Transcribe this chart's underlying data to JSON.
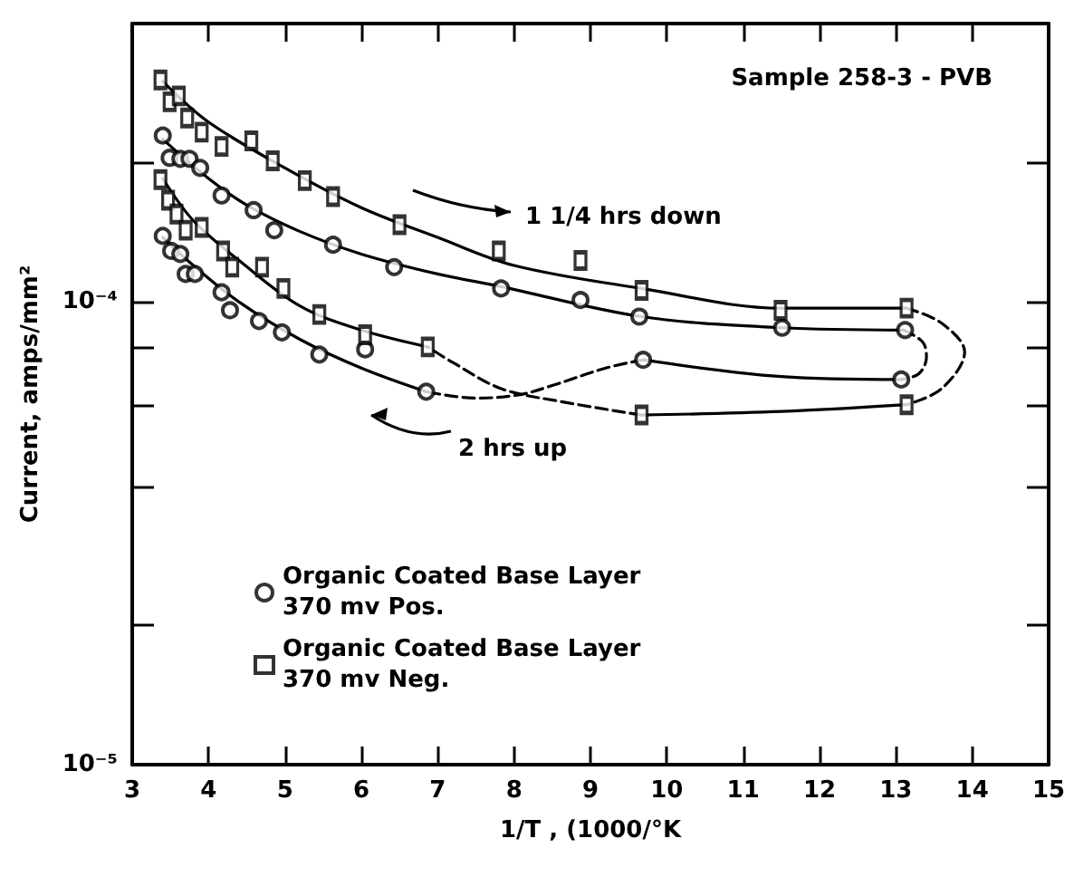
{
  "chart_data": {
    "type": "scatter",
    "title": "Sample 258-3 - PVB",
    "xlabel": "1/T , (1000/°K",
    "ylabel": "Current, amps/mm²",
    "log": "y",
    "grid": false,
    "legend": "left",
    "xlim": [
      3,
      15
    ],
    "xticks": [
      3,
      4,
      5,
      6,
      7,
      8,
      9,
      10,
      11,
      12,
      13,
      14,
      15
    ],
    "ylim": [
      1e-05,
      0.0004
    ],
    "yticks": [
      {
        "value": 1e-05,
        "label": "10⁻⁵"
      },
      {
        "value": 2e-05,
        "label": null
      },
      {
        "value": 4e-05,
        "label": null
      },
      {
        "value": 6e-05,
        "label": null
      },
      {
        "value": 8e-05,
        "label": null
      },
      {
        "value": 0.0001,
        "label": "10⁻⁴"
      },
      {
        "value": 0.0002,
        "label": null
      }
    ],
    "annotations": [
      "1 1/4 hrs down",
      "2 hrs up"
    ],
    "series": [
      {
        "name": "Organic Coated Base Layer\n370 mv Pos.",
        "marker": "circle",
        "color": "#000000",
        "x": [
          3.4,
          3.49,
          3.63,
          3.75,
          3.89,
          4.17,
          4.59,
          4.86,
          5.63,
          6.43,
          7.83,
          8.87,
          9.64,
          11.51,
          13.12,
          3.4,
          3.51,
          3.63,
          3.7,
          3.82,
          4.17,
          4.28,
          4.66,
          4.96,
          5.45,
          6.05,
          6.85,
          9.69,
          13.07
        ],
        "values": [
          0.000229,
          0.000205,
          0.000204,
          0.000204,
          0.000195,
          0.00017,
          0.000158,
          0.000143,
          0.000133,
          0.000119,
          0.000107,
          0.000101,
          9.3e-05,
          8.8e-05,
          8.7e-05,
          0.000139,
          0.000129,
          0.000127,
          0.000115,
          0.000115,
          0.000105,
          9.6e-05,
          9.1e-05,
          8.6e-05,
          7.7e-05,
          7.9e-05,
          6.4e-05,
          7.5e-05,
          6.8e-05
        ]
      },
      {
        "name": "Organic Coated Base Layer\n370 mv Neg.",
        "marker": "square",
        "color": "#000000",
        "x": [
          3.37,
          3.49,
          3.61,
          3.72,
          3.91,
          4.17,
          4.56,
          4.84,
          5.26,
          5.63,
          6.5,
          7.8,
          8.87,
          9.67,
          11.49,
          13.14,
          3.37,
          3.47,
          3.58,
          3.7,
          3.91,
          4.19,
          4.31,
          4.7,
          4.98,
          5.45,
          6.05,
          6.87,
          9.67,
          13.14
        ],
        "values": [
          0.000302,
          0.000271,
          0.000279,
          0.00025,
          0.000233,
          0.000217,
          0.000223,
          0.000202,
          0.000183,
          0.000169,
          0.000147,
          0.000129,
          0.000123,
          0.000106,
          9.6e-05,
          9.7e-05,
          0.000184,
          0.000166,
          0.000155,
          0.000143,
          0.000145,
          0.000129,
          0.000119,
          0.000119,
          0.000107,
          9.4e-05,
          8.5e-05,
          8e-05,
          5.7e-05,
          6e-05
        ]
      },
      {
        "type": "line",
        "marker": "none",
        "line_style": "solid",
        "color": "#000000",
        "x": [
          3.4,
          4,
          5,
          6,
          7,
          8,
          9.67,
          11.5,
          13.14
        ],
        "values": [
          0.0003,
          0.000245,
          0.000195,
          0.00016,
          0.000138,
          0.00012,
          0.000107,
          9.7e-05,
          9.7e-05
        ]
      },
      {
        "type": "line",
        "marker": "none",
        "line_style": "dashed",
        "color": "#000000",
        "x": [
          13.14,
          13.6,
          13.9,
          13.6,
          13.14
        ],
        "values": [
          9.7e-05,
          9e-05,
          7.8e-05,
          6.5e-05,
          6e-05
        ]
      },
      {
        "type": "line",
        "marker": "none",
        "line_style": "solid",
        "color": "#000000",
        "x": [
          13.14,
          11.5,
          9.67
        ],
        "values": [
          6e-05,
          5.8e-05,
          5.7e-05
        ]
      },
      {
        "type": "line",
        "marker": "none",
        "line_style": "dashed",
        "color": "#000000",
        "x": [
          9.67,
          8.6,
          7.83,
          7.2,
          6.87
        ],
        "values": [
          5.7e-05,
          6.1e-05,
          6.5e-05,
          7.4e-05,
          8e-05
        ]
      },
      {
        "type": "line",
        "marker": "none",
        "line_style": "solid",
        "color": "#000000",
        "x": [
          6.87,
          6,
          5.2,
          4.4,
          3.8,
          3.4
        ],
        "values": [
          8e-05,
          8.7e-05,
          9.8e-05,
          0.000123,
          0.00015,
          0.000185
        ]
      },
      {
        "type": "line",
        "marker": "none",
        "line_style": "solid",
        "color": "#000000",
        "x": [
          3.4,
          4,
          4.5,
          5.2,
          6,
          7,
          7.83,
          9.67,
          11.5,
          13.1
        ],
        "values": [
          0.000225,
          0.000185,
          0.000162,
          0.000142,
          0.000127,
          0.000115,
          0.000108,
          9.3e-05,
          8.8e-05,
          8.7e-05
        ]
      },
      {
        "type": "line",
        "marker": "none",
        "line_style": "dashed",
        "color": "#000000",
        "x": [
          13.1,
          13.35,
          13.4,
          13.3,
          13.07
        ],
        "values": [
          8.7e-05,
          8.2e-05,
          7.6e-05,
          7e-05,
          6.8e-05
        ]
      },
      {
        "type": "line",
        "marker": "none",
        "line_style": "solid",
        "color": "#000000",
        "x": [
          13.07,
          11.5,
          9.69
        ],
        "values": [
          6.8e-05,
          6.9e-05,
          7.5e-05
        ]
      },
      {
        "type": "line",
        "marker": "none",
        "line_style": "dashed",
        "color": "#000000",
        "x": [
          9.69,
          9.2,
          8.5,
          8.06,
          7.5,
          6.85
        ],
        "values": [
          7.5e-05,
          7.2e-05,
          6.6e-05,
          6.3e-05,
          6.2e-05,
          6.4e-05
        ]
      },
      {
        "type": "line",
        "marker": "none",
        "line_style": "solid",
        "color": "#000000",
        "x": [
          6.85,
          6,
          5.2,
          4.4,
          3.8,
          3.4
        ],
        "values": [
          6.4e-05,
          7.2e-05,
          8.3e-05,
          0.0001,
          0.00012,
          0.000138
        ]
      }
    ]
  }
}
